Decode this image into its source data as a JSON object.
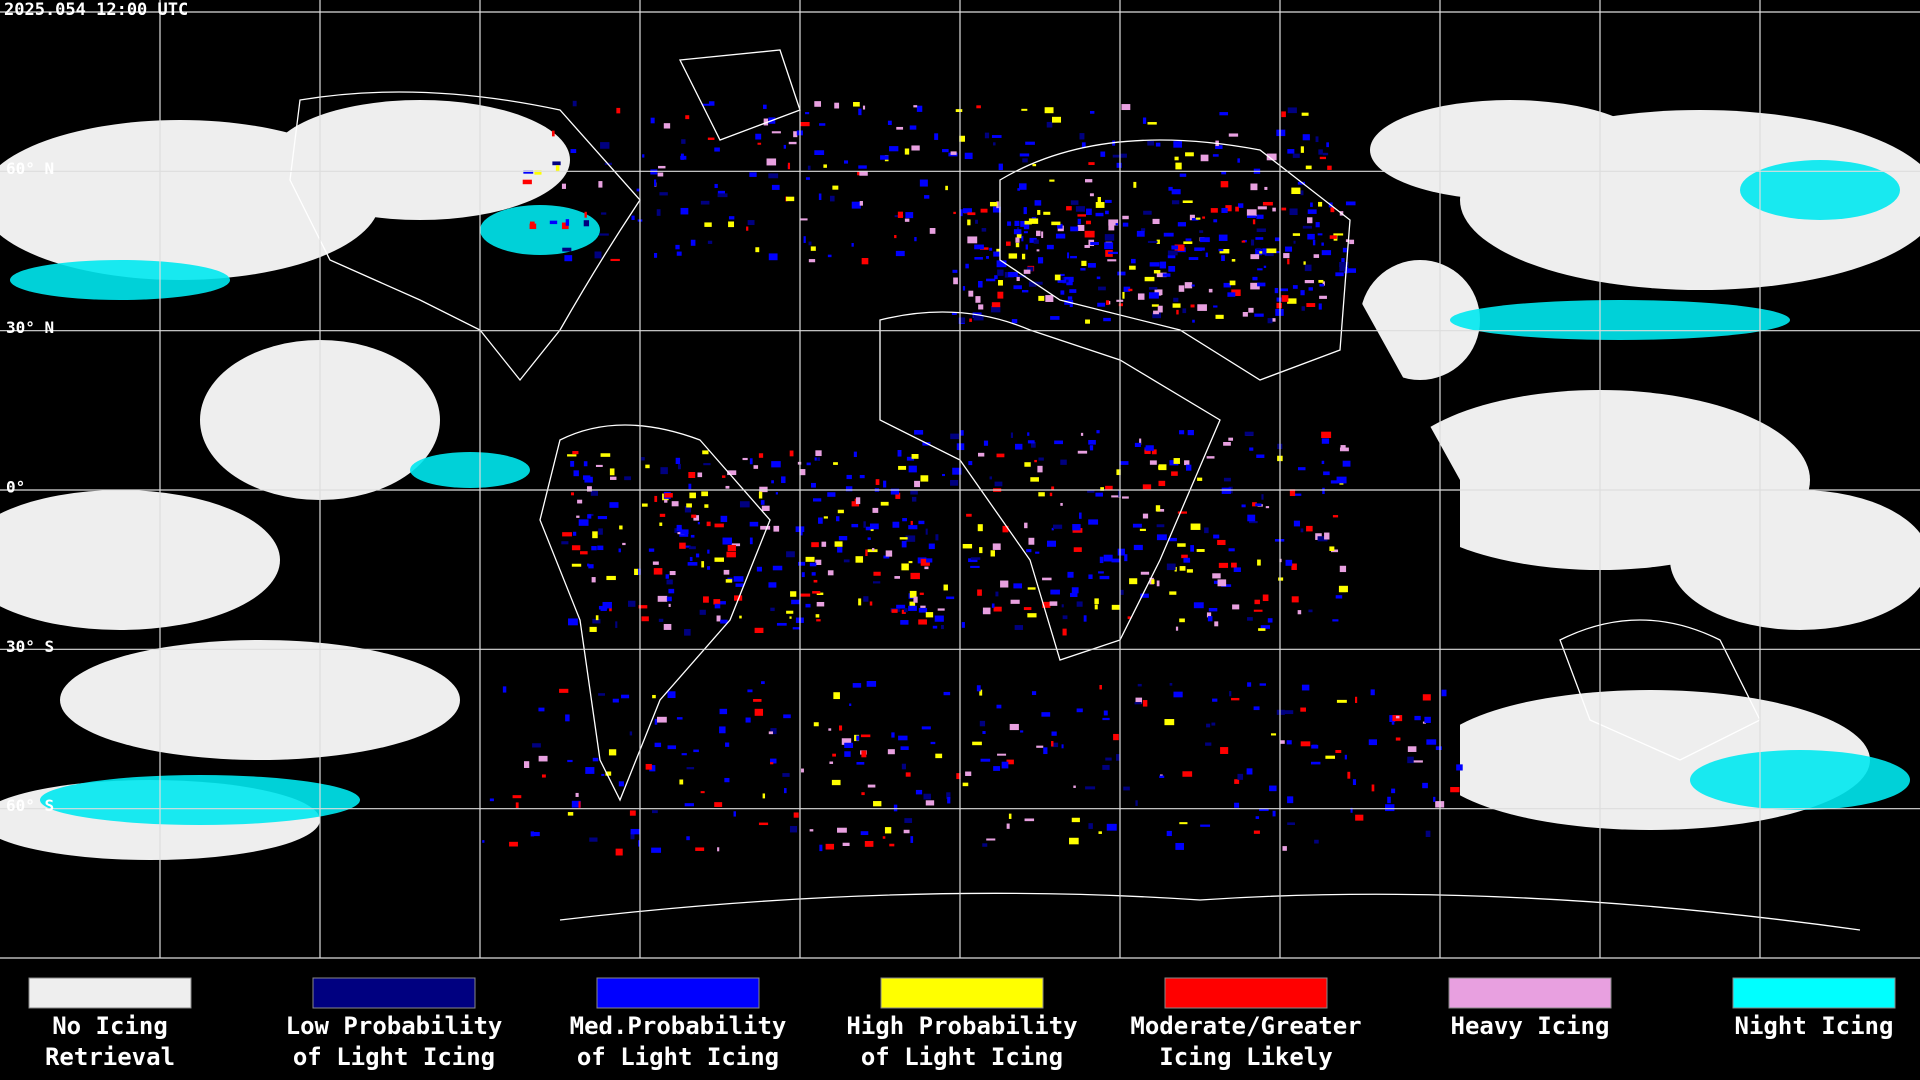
{
  "header": {
    "title": "2025.054 12:00 UTC"
  },
  "map": {
    "lat_labels": [
      "60° N",
      "30° N",
      "0°",
      "30° S",
      "60° S"
    ]
  },
  "legend": [
    {
      "label": [
        "No Icing",
        "Retrieval"
      ],
      "color": "#eeeeee"
    },
    {
      "label": [
        "Low Probability",
        "of Light Icing"
      ],
      "color": "#000080"
    },
    {
      "label": [
        "Med.Probability",
        "of Light Icing"
      ],
      "color": "#0000ff"
    },
    {
      "label": [
        "High Probability",
        "of Light Icing"
      ],
      "color": "#ffff00"
    },
    {
      "label": [
        "Moderate/Greater",
        "Icing Likely"
      ],
      "color": "#ff0000"
    },
    {
      "label": [
        "Heavy Icing"
      ],
      "color": "#e8a0e0"
    },
    {
      "label": [
        "Night Icing"
      ],
      "color": "#00ffff"
    }
  ]
}
